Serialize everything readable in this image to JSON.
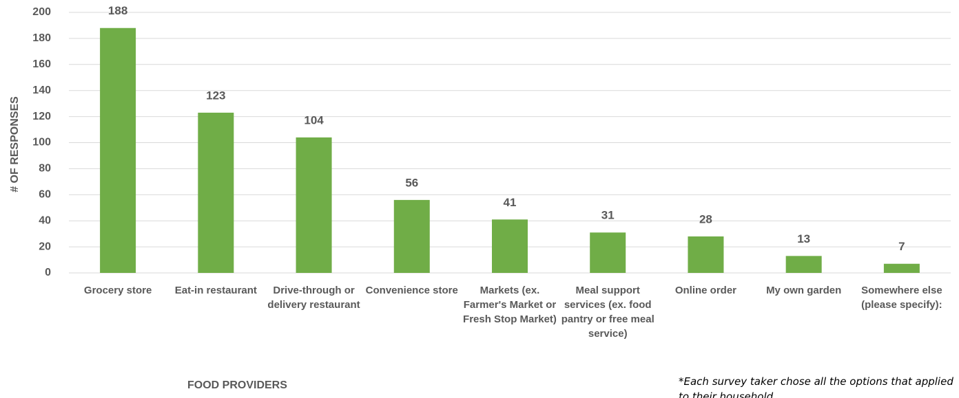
{
  "chart_data": {
    "type": "bar",
    "categories": [
      "Grocery store",
      "Eat-in restaurant",
      "Drive-through or delivery restaurant",
      "Convenience store",
      "Markets (ex. Farmer's Market or Fresh Stop Market)",
      "Meal support services (ex. food pantry or free meal service)",
      "Online order",
      "My own garden",
      "Somewhere else (please specify):"
    ],
    "values": [
      188,
      123,
      104,
      56,
      41,
      31,
      28,
      13,
      7
    ],
    "color": "#70ad47",
    "ylim": [
      0,
      200
    ],
    "yticks": [
      0,
      20,
      40,
      60,
      80,
      100,
      120,
      140,
      160,
      180,
      200
    ],
    "grid": true,
    "x_label": "FOOD PROVIDERS",
    "y_label": "# OF RESPONSES",
    "annotation": "*Each survey taker chose all the options that applied to their household"
  }
}
